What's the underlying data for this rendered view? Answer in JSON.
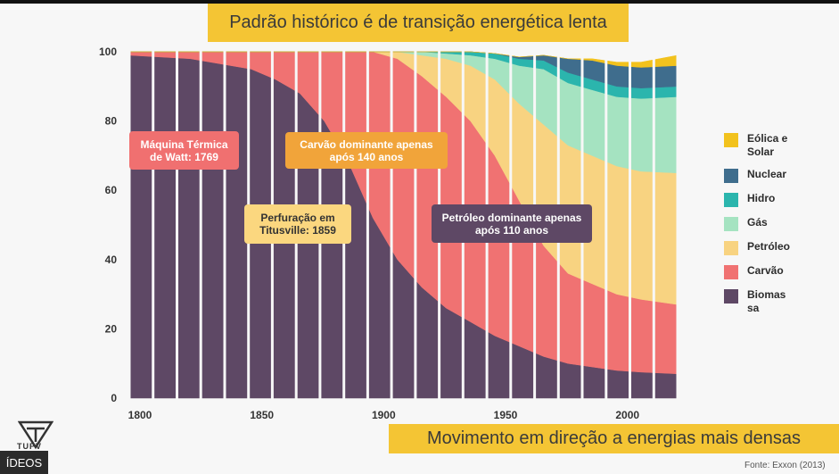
{
  "title": "Padrão histórico é de transição energética lenta",
  "bottom_banner": "Movimento em direção a energias mais densas",
  "source": "Fonte: Exxon (2013)",
  "logo_text": "TUPV",
  "videos_tab": "ÍDEOS",
  "annotations": {
    "watt": "Máquina Térmica de Watt: 1769",
    "carvao": "Carvão dominante apenas após 140 anos",
    "titusville": "Perfuração em Titusville: 1859",
    "petroleo": "Petróleo dominante apenas após 110 anos"
  },
  "legend": [
    {
      "label": "Eólica e Solar",
      "color": "#f2c21d"
    },
    {
      "label": "Nuclear",
      "color": "#3f6d8d"
    },
    {
      "label": "Hidro",
      "color": "#2bb5ad"
    },
    {
      "label": "Gás",
      "color": "#a5e3c1"
    },
    {
      "label": "Petróleo",
      "color": "#f8d381"
    },
    {
      "label": "Carvão",
      "color": "#f07272"
    },
    {
      "label": "Biomassa",
      "color": "#5e4865"
    }
  ],
  "chart_data": {
    "type": "area",
    "stacked": true,
    "x": [
      1800,
      1825,
      1850,
      1860,
      1870,
      1880,
      1890,
      1900,
      1910,
      1920,
      1930,
      1940,
      1950,
      1960,
      1970,
      1980,
      1990,
      2000,
      2010,
      2025
    ],
    "series": [
      {
        "name": "Biomassa",
        "color": "#5e4865",
        "values": [
          99,
          98,
          95,
          92,
          88,
          80,
          68,
          52,
          40,
          32,
          26,
          22,
          18,
          15,
          12,
          10,
          9,
          8,
          7.5,
          7
        ]
      },
      {
        "name": "Carvão",
        "color": "#f07272",
        "values": [
          1,
          2,
          5,
          8,
          12,
          20,
          32,
          48,
          58,
          61,
          61,
          58,
          52,
          42,
          32,
          26,
          24,
          22,
          21,
          20
        ]
      },
      {
        "name": "Petróleo",
        "color": "#f8d381",
        "values": [
          0,
          0,
          0,
          0,
          0,
          0,
          0,
          0,
          2,
          6,
          11,
          16,
          22,
          28,
          35,
          37,
          37,
          37,
          37,
          38
        ]
      },
      {
        "name": "Gás",
        "color": "#a5e3c1",
        "values": [
          0,
          0,
          0,
          0,
          0,
          0,
          0,
          0,
          0,
          1,
          1.5,
          3,
          6,
          11,
          16,
          18,
          19,
          20,
          21,
          22
        ]
      },
      {
        "name": "Hidro",
        "color": "#2bb5ad",
        "values": [
          0,
          0,
          0,
          0,
          0,
          0,
          0,
          0,
          0,
          0,
          0.5,
          1,
          1.5,
          2,
          2.5,
          3,
          3,
          3,
          3,
          3
        ]
      },
      {
        "name": "Nuclear",
        "color": "#3f6d8d",
        "values": [
          0,
          0,
          0,
          0,
          0,
          0,
          0,
          0,
          0,
          0,
          0,
          0,
          0,
          0.5,
          1.5,
          4,
          5.5,
          6,
          6,
          6
        ]
      },
      {
        "name": "Eólica e Solar",
        "color": "#f2c21d",
        "values": [
          0,
          0,
          0,
          0,
          0,
          0,
          0,
          0,
          0,
          0,
          0,
          0,
          0,
          0,
          0,
          0,
          0.5,
          1,
          1.5,
          3
        ]
      }
    ],
    "xlim": [
      1800,
      2025
    ],
    "ylim": [
      0,
      100
    ],
    "x_ticks": [
      1800,
      1850,
      1900,
      1950,
      2000
    ],
    "y_ticks": [
      0,
      20,
      40,
      60,
      80,
      100
    ],
    "grid": false,
    "legend_position": "right"
  }
}
